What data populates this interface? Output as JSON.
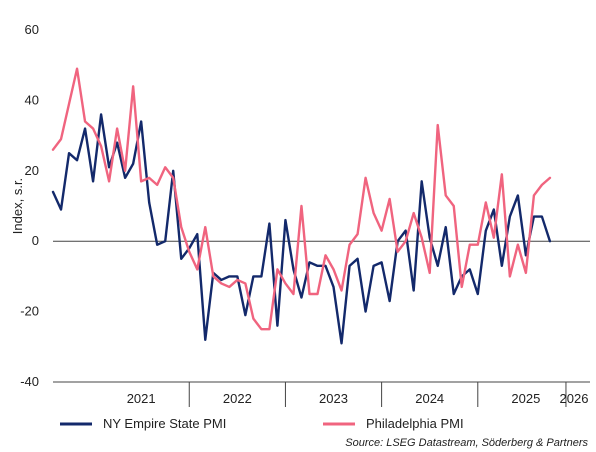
{
  "chart_data": {
    "type": "line",
    "ylabel": "Index, s.r.",
    "ylim": [
      -40,
      60
    ],
    "yticks": [
      -40,
      -20,
      0,
      20,
      40,
      60
    ],
    "x_start": "2020-08",
    "x_end": "2026-03",
    "xtick_labels": [
      {
        "label": "2021",
        "at": "2021-07"
      },
      {
        "label": "2022",
        "at": "2022-07"
      },
      {
        "label": "2023",
        "at": "2023-07"
      },
      {
        "label": "2024",
        "at": "2024-07"
      },
      {
        "label": "2025",
        "at": "2025-07"
      },
      {
        "label": "2026",
        "at": "2026-01"
      }
    ],
    "year_separators": [
      "2022-01",
      "2023-01",
      "2024-01",
      "2025-01",
      "2025-12"
    ],
    "legend_position": "bottom",
    "series": [
      {
        "name": "NY Empire State PMI",
        "color": "#13296b",
        "start": "2020-08",
        "values": [
          14,
          9,
          25,
          23,
          32,
          17,
          36,
          21,
          28,
          18,
          22,
          34,
          11,
          -1,
          0,
          20,
          -5,
          -2,
          2,
          -28,
          -9,
          -11,
          -10,
          -10,
          -21,
          -10,
          -10,
          5,
          -24,
          6,
          -8,
          -16,
          -6,
          -7,
          -7,
          -13,
          -29,
          -7,
          -5,
          -20,
          -7,
          -6,
          -17,
          0,
          3,
          -14,
          17,
          1,
          -7,
          4,
          -15,
          -10,
          -8,
          -15,
          3,
          9,
          -7,
          7,
          13,
          -4,
          7,
          7,
          0
        ]
      },
      {
        "name": "Philadelphia PMI",
        "color": "#f0647f",
        "start": "2020-08",
        "values": [
          26,
          29,
          39,
          49,
          34,
          32,
          27,
          17,
          32,
          20,
          44,
          17,
          18,
          16,
          21,
          18,
          4,
          -3,
          -8,
          4,
          -10,
          -12,
          -13,
          -11,
          -12,
          -22,
          -25,
          -25,
          -8,
          -12,
          -15,
          10,
          -15,
          -15,
          -4,
          -8,
          -14,
          -1,
          2,
          18,
          8,
          3,
          12,
          -3,
          0,
          8,
          1,
          -9,
          33,
          13,
          10,
          -13,
          -1,
          -1,
          11,
          1,
          19,
          -10,
          -1,
          -9,
          13,
          16,
          18
        ]
      }
    ]
  },
  "source_text": "Source: LSEG Datastream, Söderberg & Partners"
}
